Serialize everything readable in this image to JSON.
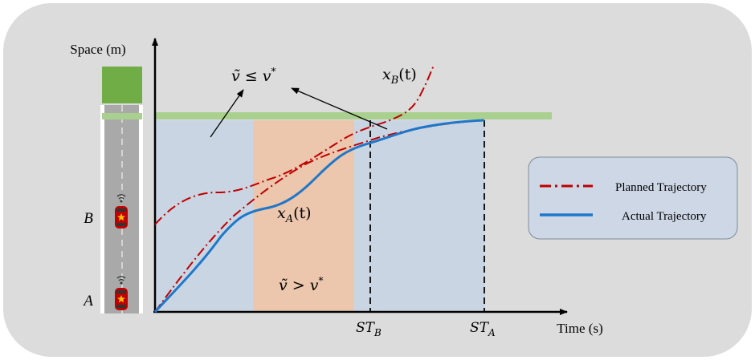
{
  "axes": {
    "y_label": "Space (m)",
    "x_label": "Time (s)"
  },
  "road": {
    "markers": [
      "B",
      "A"
    ]
  },
  "curve_labels": {
    "x_b": {
      "base": "x",
      "sub": "B",
      "rest": "(t)"
    },
    "x_a": {
      "base": "x",
      "sub": "A",
      "rest": "(t)"
    }
  },
  "annotations": {
    "upper_condition": {
      "lhs": "ṽ",
      "op": " ≤ ",
      "rhs": "v",
      "sup": "*"
    },
    "lower_condition": {
      "lhs": "ṽ",
      "op": " > ",
      "rhs": "v",
      "sup": "*"
    }
  },
  "ticks": [
    {
      "base": "ST",
      "sub": "B"
    },
    {
      "base": "ST",
      "sub": "A"
    }
  ],
  "legend": {
    "items": [
      {
        "label": "Planned Trajectory",
        "style": "dash-dot",
        "color": "#c00000"
      },
      {
        "label": "Actual Trajectory",
        "style": "solid",
        "color": "#1f77c8"
      }
    ]
  },
  "colors": {
    "panel_bg": "#dcdcdc",
    "region_blue": "#c9d5e3",
    "region_orange": "#ecc6ad",
    "stop_line": "#a9d08e",
    "road_gray": "#a9a9a9",
    "destination_green": "#70ad47",
    "planned": "#c00000",
    "actual": "#1f77c8",
    "legend_bg": "#cdd7e6"
  }
}
